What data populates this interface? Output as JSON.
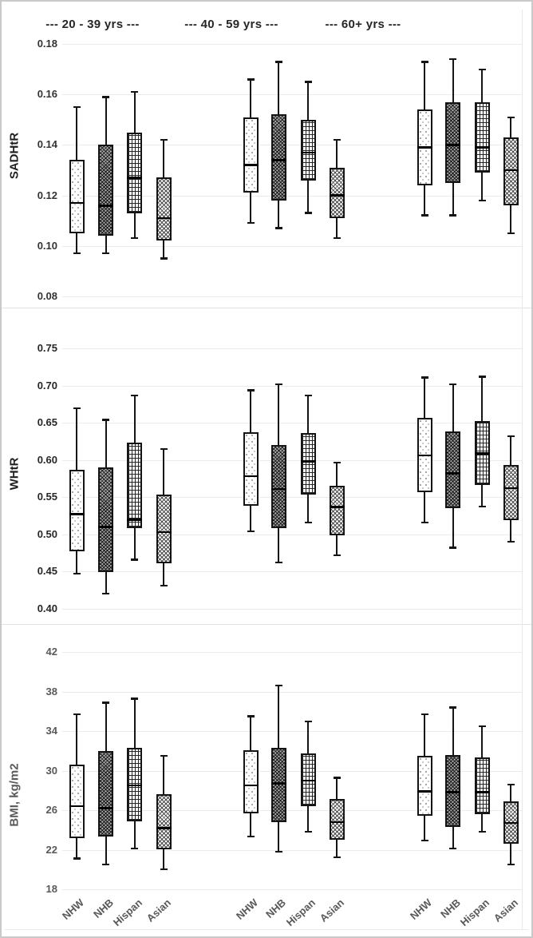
{
  "page": {
    "background": "#ffffff",
    "border_color": "#c9c9c9",
    "gridline_color": "#ebebeb"
  },
  "age_groups": [
    {
      "label": "---  20 - 39 yrs  ---"
    },
    {
      "label": "---  40 - 59 yrs  ---"
    },
    {
      "label": "---  60+ yrs  ---"
    }
  ],
  "categories": [
    "NHW",
    "NHB",
    "Hispan",
    "Asian"
  ],
  "category_patterns": [
    "dotted",
    "dense-crosshatch",
    "brick-grid",
    "diamond-lattice"
  ],
  "x_axis": {
    "label_color": "#595959"
  },
  "chart_data": [
    {
      "type": "boxplot",
      "ylabel": "SADHtR",
      "ylim": [
        0.08,
        0.18
      ],
      "yticks": [
        "0.18",
        "0.16",
        "0.14",
        "0.12",
        "0.10",
        "0.08"
      ],
      "grid": true,
      "axis_tick_color": "#333333",
      "axis_title_color": "#1f1f1f",
      "box_order": [
        "low",
        "q1",
        "median",
        "q3",
        "high"
      ],
      "series": [
        {
          "group": "20 - 39 yrs",
          "values": [
            [
              0.097,
              0.105,
              0.117,
              0.134,
              0.155
            ],
            [
              0.097,
              0.104,
              0.116,
              0.14,
              0.159
            ],
            [
              0.103,
              0.113,
              0.127,
              0.145,
              0.161
            ],
            [
              0.095,
              0.102,
              0.111,
              0.127,
              0.142
            ]
          ]
        },
        {
          "group": "40 - 59 yrs",
          "values": [
            [
              0.109,
              0.121,
              0.132,
              0.151,
              0.166
            ],
            [
              0.107,
              0.118,
              0.134,
              0.152,
              0.173
            ],
            [
              0.113,
              0.126,
              0.137,
              0.15,
              0.165
            ],
            [
              0.103,
              0.111,
              0.12,
              0.131,
              0.142
            ]
          ]
        },
        {
          "group": "60+ yrs",
          "values": [
            [
              0.112,
              0.124,
              0.139,
              0.154,
              0.173
            ],
            [
              0.112,
              0.125,
              0.14,
              0.157,
              0.174
            ],
            [
              0.118,
              0.129,
              0.139,
              0.157,
              0.17
            ],
            [
              0.105,
              0.116,
              0.13,
              0.143,
              0.151
            ]
          ]
        }
      ]
    },
    {
      "type": "boxplot",
      "ylabel": "WHtR",
      "ylim": [
        0.4,
        0.75
      ],
      "yticks": [
        "0.75",
        "0.70",
        "0.65",
        "0.60",
        "0.55",
        "0.50",
        "0.45",
        "0.40"
      ],
      "grid": true,
      "axis_tick_color": "#262626",
      "axis_title_color": "#1f1f1f",
      "box_order": [
        "low",
        "q1",
        "median",
        "q3",
        "high"
      ],
      "series": [
        {
          "group": "20 - 39 yrs",
          "values": [
            [
              0.447,
              0.477,
              0.527,
              0.587,
              0.67
            ],
            [
              0.42,
              0.449,
              0.51,
              0.59,
              0.654
            ],
            [
              0.466,
              0.508,
              0.52,
              0.623,
              0.687
            ],
            [
              0.431,
              0.461,
              0.503,
              0.553,
              0.615
            ]
          ]
        },
        {
          "group": "40 - 59 yrs",
          "values": [
            [
              0.504,
              0.538,
              0.578,
              0.637,
              0.694
            ],
            [
              0.462,
              0.508,
              0.561,
              0.62,
              0.702
            ],
            [
              0.516,
              0.553,
              0.598,
              0.636,
              0.687
            ],
            [
              0.472,
              0.499,
              0.537,
              0.565,
              0.597
            ]
          ]
        },
        {
          "group": "60+ yrs",
          "values": [
            [
              0.516,
              0.557,
              0.606,
              0.657,
              0.711
            ],
            [
              0.482,
              0.535,
              0.582,
              0.638,
              0.702
            ],
            [
              0.537,
              0.566,
              0.609,
              0.652,
              0.712
            ],
            [
              0.49,
              0.519,
              0.562,
              0.593,
              0.632
            ]
          ]
        }
      ]
    },
    {
      "type": "boxplot",
      "ylabel": "BMI, kg/m2",
      "ylim": [
        18,
        42
      ],
      "yticks": [
        "42",
        "38",
        "34",
        "30",
        "26",
        "22",
        "18"
      ],
      "grid": true,
      "axis_tick_color": "#595959",
      "axis_title_color": "#595959",
      "box_order": [
        "low",
        "q1",
        "median",
        "q3",
        "high"
      ],
      "series": [
        {
          "group": "20 - 39 yrs",
          "values": [
            [
              21.1,
              23.2,
              26.4,
              30.6,
              35.7
            ],
            [
              20.5,
              23.3,
              26.2,
              32.0,
              36.9
            ],
            [
              22.1,
              24.9,
              28.5,
              32.3,
              37.3
            ],
            [
              20.0,
              22.0,
              24.2,
              27.6,
              31.5
            ]
          ]
        },
        {
          "group": "40 - 59 yrs",
          "values": [
            [
              23.3,
              25.7,
              28.5,
              32.1,
              35.5
            ],
            [
              21.8,
              24.8,
              28.7,
              32.3,
              38.6
            ],
            [
              23.8,
              26.4,
              29.0,
              31.7,
              35.0
            ],
            [
              21.2,
              23.0,
              24.8,
              27.1,
              29.3
            ]
          ]
        },
        {
          "group": "60+ yrs",
          "values": [
            [
              22.9,
              25.4,
              27.9,
              31.5,
              35.7
            ],
            [
              22.1,
              24.3,
              27.8,
              31.6,
              36.4
            ],
            [
              23.8,
              25.6,
              27.8,
              31.3,
              34.5
            ],
            [
              20.5,
              22.6,
              24.7,
              26.9,
              28.6
            ]
          ]
        }
      ]
    }
  ]
}
